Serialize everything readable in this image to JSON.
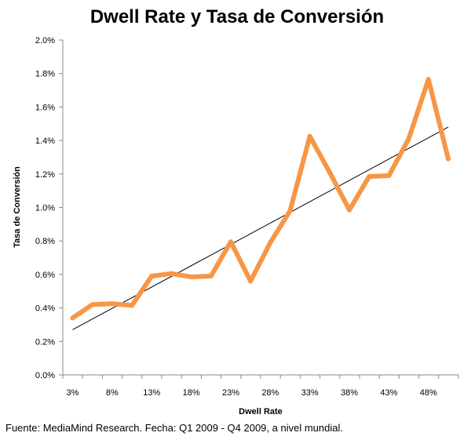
{
  "chart_data": {
    "type": "line",
    "title": "Dwell Rate y Tasa de Conversión",
    "xlabel": "Dwell Rate",
    "ylabel": "Tasa de Conversión",
    "x_tick_labels": [
      "3%",
      "8%",
      "13%",
      "18%",
      "23%",
      "28%",
      "33%",
      "38%",
      "43%",
      "48%"
    ],
    "y_tick_labels": [
      "0.0%",
      "0.2%",
      "0.4%",
      "0.6%",
      "0.8%",
      "1.0%",
      "1.2%",
      "1.4%",
      "1.6%",
      "1.8%",
      "2.0%"
    ],
    "ylim": [
      0,
      2.0
    ],
    "x": [
      "3%",
      "5.5%",
      "8%",
      "10.5%",
      "13%",
      "15.5%",
      "18%",
      "20.5%",
      "23%",
      "25.5%",
      "28%",
      "30.5%",
      "33%",
      "35.5%",
      "38%",
      "40.5%",
      "43%",
      "45.5%",
      "48%",
      "50.5%"
    ],
    "series": [
      {
        "values": [
          0.34,
          0.42,
          0.425,
          0.415,
          0.59,
          0.605,
          0.585,
          0.59,
          0.795,
          0.56,
          0.79,
          0.98,
          1.425,
          1.21,
          0.985,
          1.185,
          1.19,
          1.41,
          1.765,
          1.29
        ],
        "color": "#f79646"
      }
    ],
    "trendline": {
      "type": "linear",
      "start": 0.27,
      "end": 1.48,
      "color": "#000000"
    },
    "grid": false,
    "legend": "none"
  },
  "footer": {
    "source_text": "Fuente:  MediaMind Research. Fecha:  Q1 2009 - Q4 2009, a nivel mundial."
  }
}
